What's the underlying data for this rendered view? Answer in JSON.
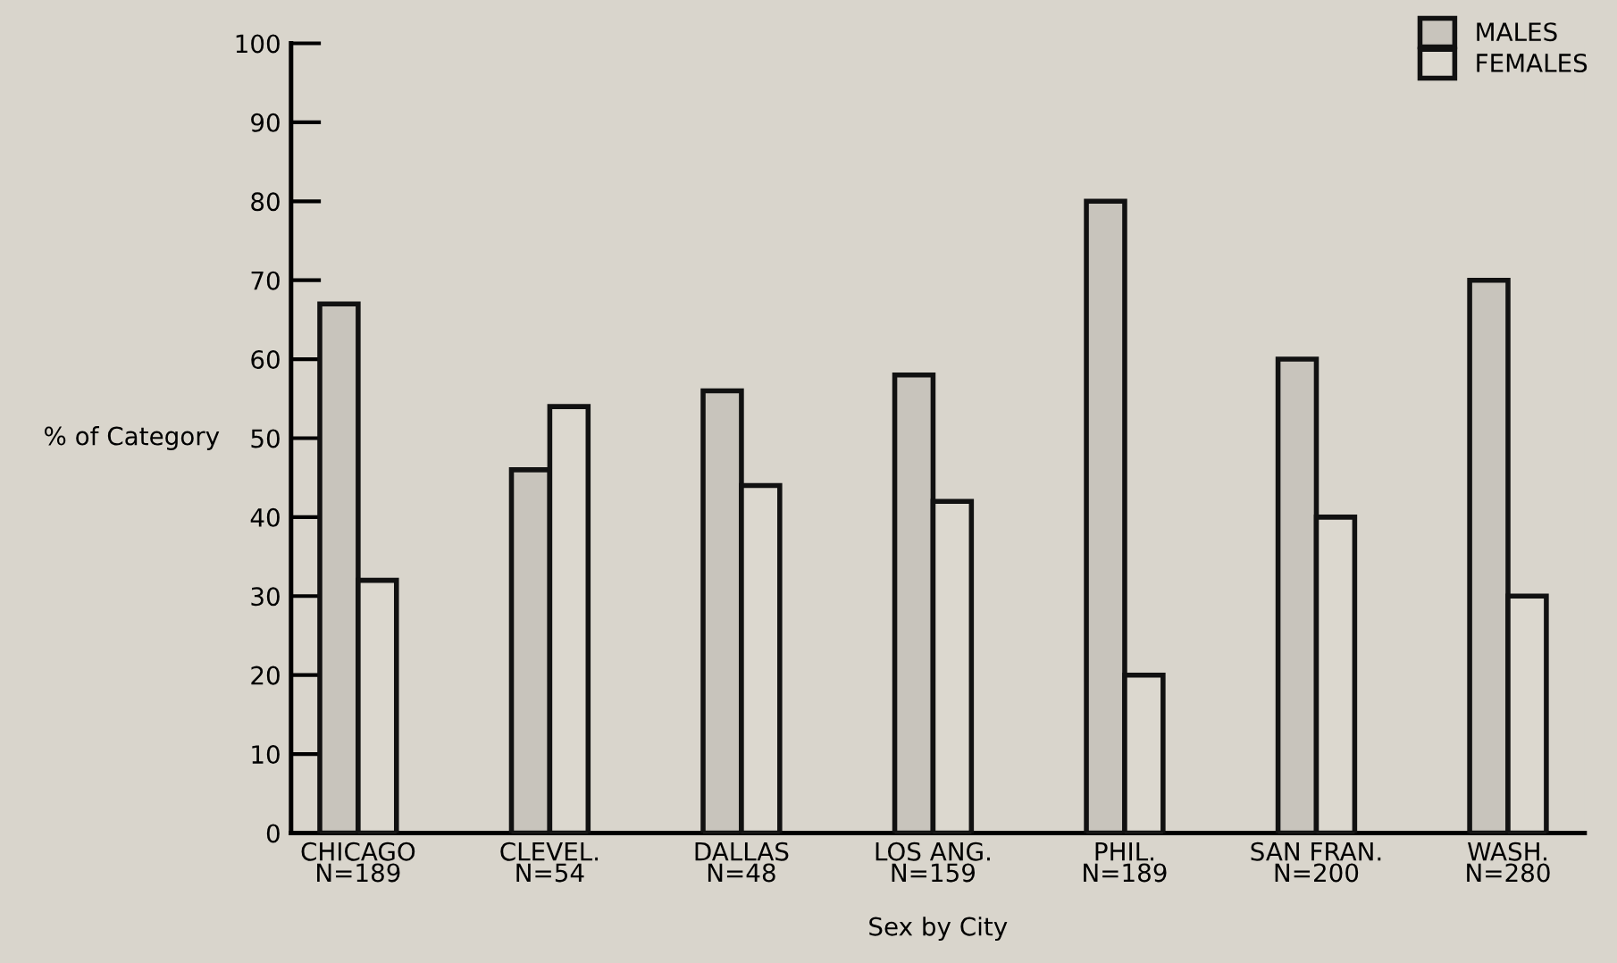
{
  "chart_data": {
    "type": "bar",
    "xlabel": "Sex by City",
    "ylabel": "% of Category",
    "categories": [
      "CHICAGO\nN=189",
      "CLEVEL.\nN=54",
      "DALLAS\nN=48",
      "LOS ANG.\nN=159",
      "PHIL.\nN=189",
      "SAN FRAN.\nN=200",
      "WASH.\nN=280"
    ],
    "series": [
      {
        "name": "MALES",
        "color": "#c8c4bc",
        "values": [
          67,
          46,
          56,
          58,
          80,
          60,
          70
        ]
      },
      {
        "name": "FEMALES",
        "color": "#dcd8cf",
        "values": [
          32,
          54,
          44,
          42,
          20,
          40,
          30
        ]
      }
    ],
    "ylim": [
      0,
      100
    ],
    "yticks": [
      0,
      10,
      20,
      30,
      40,
      50,
      60,
      70,
      80,
      90,
      100
    ],
    "grid": false,
    "legend": "top right"
  }
}
